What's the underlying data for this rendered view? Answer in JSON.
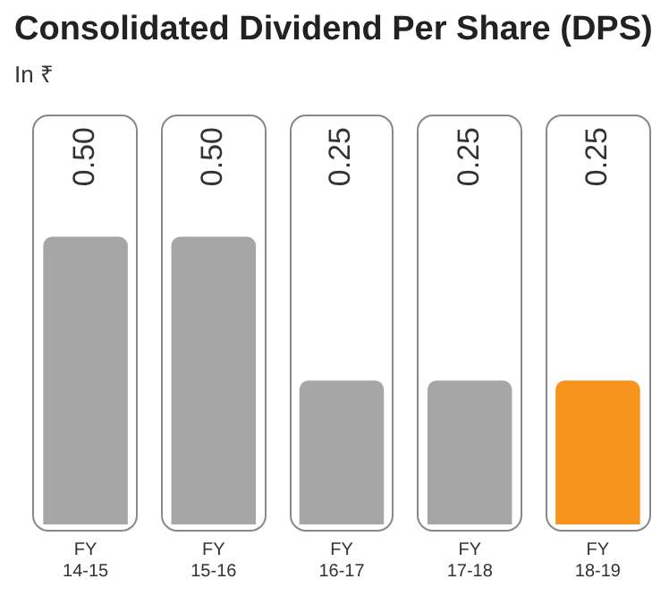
{
  "chart_data": {
    "type": "bar",
    "title": "Consolidated Dividend Per Share (DPS)",
    "subtitle": "In ₹",
    "categories": [
      "FY 14-15",
      "FY 15-16",
      "FY 16-17",
      "FY 17-18",
      "FY 18-19"
    ],
    "values": [
      0.5,
      0.5,
      0.25,
      0.25,
      0.25
    ],
    "colors": [
      "#a6a6a6",
      "#a6a6a6",
      "#a6a6a6",
      "#a6a6a6",
      "#f7941d"
    ],
    "value_labels": [
      "0.50",
      "0.50",
      "0.25",
      "0.25",
      "0.25"
    ],
    "grid": false,
    "legend": false
  }
}
